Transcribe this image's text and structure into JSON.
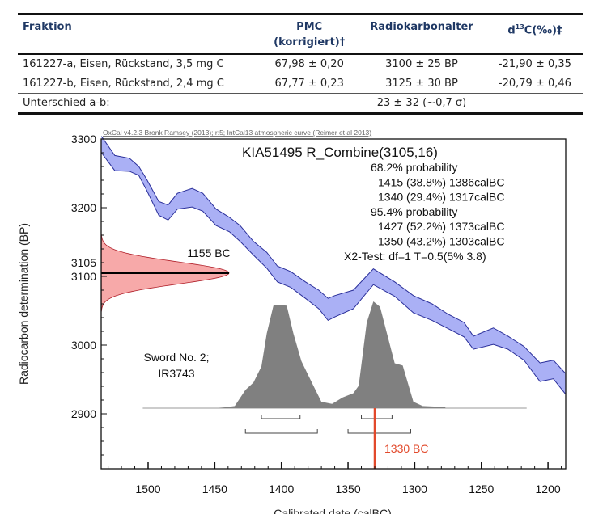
{
  "table": {
    "headers": [
      "Fraktion",
      "PMC",
      "(korrigiert)†",
      "Radiokarbonalter",
      "d",
      "13",
      "C(‰)‡"
    ],
    "rows": [
      [
        "161227-a, Eisen, Rückstand, 3,5 mg C",
        "67,98 ± 0,20",
        "3100 ± 25 BP",
        "-21,90 ± 0,35"
      ],
      [
        "161227-b, Eisen, Rückstand, 2,4 mg C",
        "67,77 ± 0,23",
        "3125 ± 30 BP",
        "-20,79 ± 0,46"
      ],
      [
        "Unterschied a-b:",
        "",
        "23 ± 32 (~0,7 σ)",
        ""
      ]
    ]
  },
  "chart_data": {
    "type": "area",
    "header": "OxCal v4.2.3 Bronk Ramsey (2013); r:5; IntCal13 atmospheric curve (Reimer et al 2013)",
    "title": "KIA51495 R_Combine(3105,16)",
    "summary_lines": [
      "68.2% probability",
      "1415 (38.8%) 1386calBC",
      "1340 (29.4%) 1317calBC",
      "95.4% probability",
      "1427 (52.2%) 1373calBC",
      "1350 (43.2%) 1303calBC",
      "X2-Test: df=1 T=0.5(5% 3.8)"
    ],
    "xlabel": "Calibrated date (calBC)",
    "ylabel": "Radiocarbon determination (BP)",
    "xlim": [
      1536,
      1187
    ],
    "ylim": [
      2820,
      3300
    ],
    "x_reversed": true,
    "xticks": [
      "1500",
      "1450",
      "1400",
      "1350",
      "1300",
      "1250",
      "1200"
    ],
    "yticks": [
      "3300",
      "3200",
      "3100",
      "3000",
      "2900"
    ],
    "grid": false,
    "colors": {
      "curve": "#aab0f5",
      "curve_edge": "#2a2f9a",
      "measurement": "#f7a9a9",
      "measurement_edge": "#b0202a",
      "posterior": "#808080",
      "marker": "#e2492b"
    },
    "calibration_curve": {
      "year": [
        1535,
        1525,
        1514,
        1507,
        1501,
        1492,
        1485,
        1478,
        1467,
        1459,
        1449,
        1439,
        1431,
        1421,
        1411,
        1403,
        1393,
        1382,
        1372,
        1365,
        1360,
        1346,
        1331,
        1315,
        1301,
        1287,
        1275,
        1263,
        1256,
        1241,
        1230,
        1218,
        1206,
        1196,
        1187
      ],
      "upper_bp": [
        3304,
        3276,
        3272,
        3260,
        3241,
        3209,
        3204,
        3221,
        3228,
        3221,
        3198,
        3186,
        3174,
        3151,
        3135,
        3115,
        3107,
        3092,
        3080,
        3068,
        3072,
        3080,
        3111,
        3092,
        3072,
        3060,
        3045,
        3033,
        3013,
        3025,
        3013,
        2998,
        2974,
        2978,
        2959
      ],
      "lower_bp": [
        3280,
        3254,
        3253,
        3247,
        3225,
        3189,
        3182,
        3198,
        3201,
        3195,
        3174,
        3165,
        3151,
        3131,
        3112,
        3092,
        3084,
        3068,
        3053,
        3036,
        3041,
        3053,
        3088,
        3071,
        3047,
        3036,
        3024,
        3012,
        2994,
        3001,
        2994,
        2978,
        2947,
        2951,
        2929
      ]
    },
    "measurement": {
      "mean_bp": 3105,
      "sigma_bp": 16,
      "label": "3105",
      "peak_label": "1155 BC"
    },
    "posterior": {
      "year": [
        1447,
        1435,
        1427,
        1421,
        1415,
        1411,
        1406,
        1403,
        1396,
        1391,
        1385,
        1376,
        1370,
        1362,
        1354,
        1346,
        1342,
        1336,
        1331,
        1326,
        1315,
        1309,
        1301,
        1294,
        1277
      ],
      "density": [
        0,
        0.02,
        0.17,
        0.24,
        0.39,
        0.7,
        0.96,
        0.97,
        0.96,
        0.7,
        0.44,
        0.21,
        0.06,
        0.04,
        0.1,
        0.14,
        0.21,
        0.8,
        1.0,
        0.95,
        0.42,
        0.4,
        0.06,
        0.02,
        0.01
      ],
      "baseline_range": [
        1504,
        1216
      ]
    },
    "ranges_68": [
      [
        1415,
        1386
      ],
      [
        1340,
        1317
      ]
    ],
    "ranges_95": [
      [
        1427,
        1373
      ],
      [
        1350,
        1303
      ]
    ],
    "marker": {
      "year": 1330,
      "label": "1330 BC"
    },
    "sample_label": [
      "Sword No. 2;",
      "IR3743"
    ]
  }
}
